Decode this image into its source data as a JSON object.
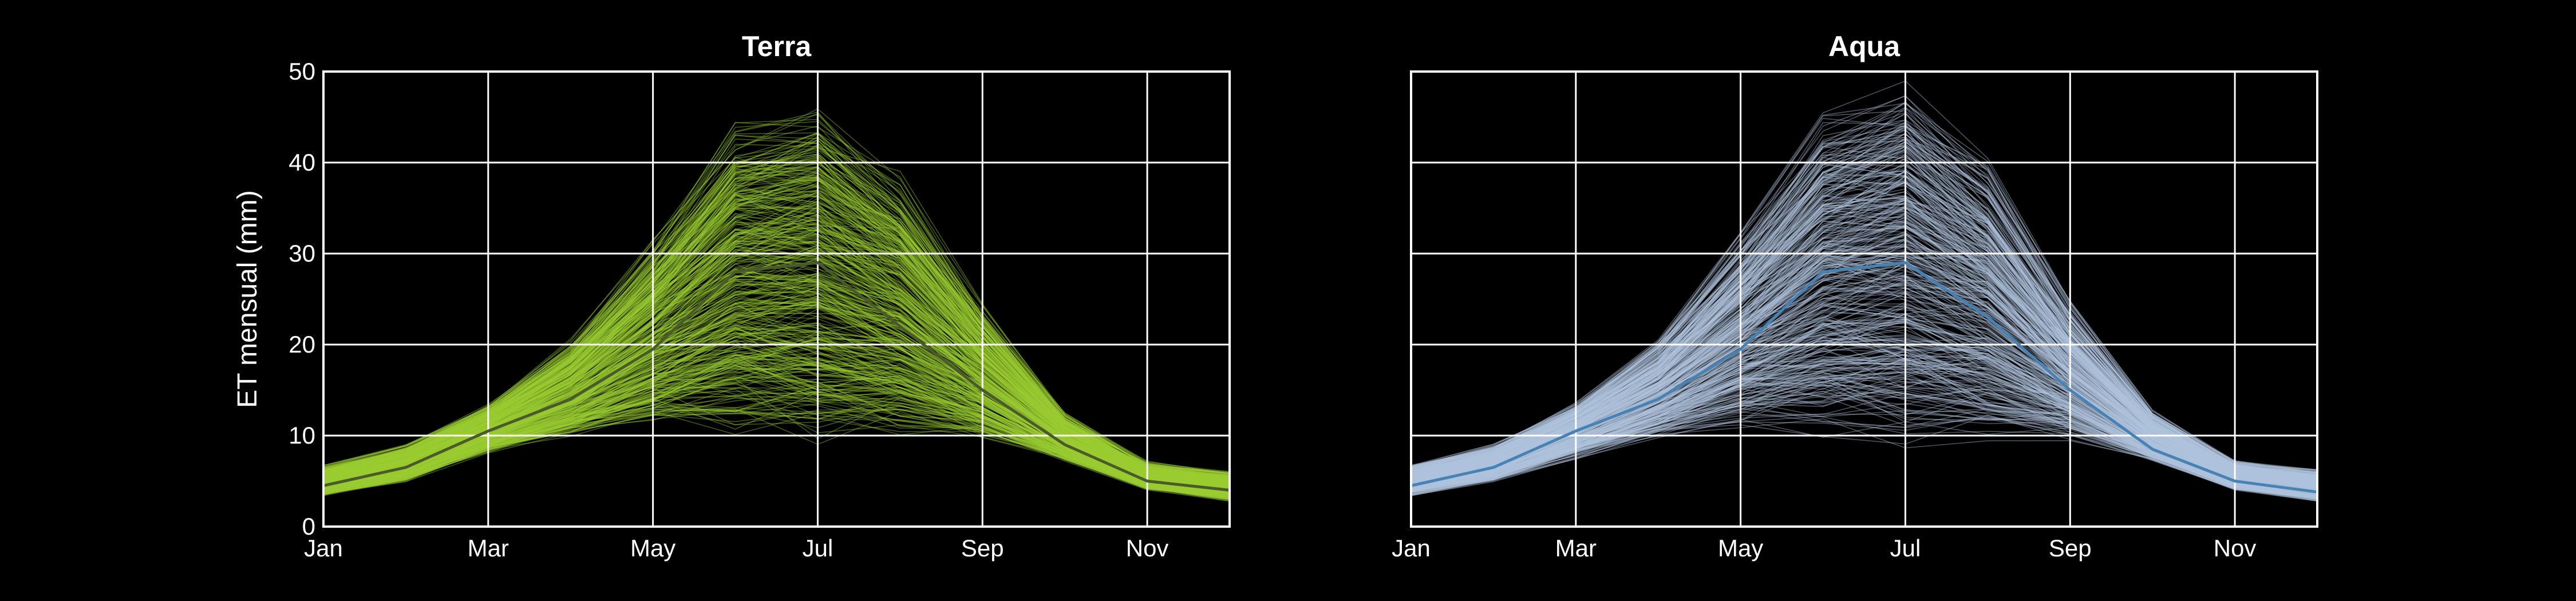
{
  "chart_data": [
    {
      "type": "line",
      "title": "Terra",
      "xlabel": "",
      "ylabel": "ET mensual (mm)",
      "x": [
        "Jan",
        "Feb",
        "Mar",
        "Apr",
        "May",
        "Jun",
        "Jul",
        "Aug",
        "Sep",
        "Oct",
        "Nov",
        "Dec"
      ],
      "xticks": [
        "Jan",
        "Mar",
        "May",
        "Jul",
        "Sep",
        "Nov"
      ],
      "ylim": [
        0,
        50
      ],
      "yticks": [
        0,
        10,
        20,
        30,
        40,
        50
      ],
      "grid": true,
      "colors": {
        "ensemble": "#9acd32",
        "mean": "#4a5a2a",
        "background": "#000000",
        "grid": "#ffffff"
      },
      "ensemble_count": 400,
      "ensemble_band": {
        "p05": [
          3.6,
          5.2,
          8.5,
          10.5,
          12.5,
          13.0,
          12.5,
          12.0,
          10.5,
          7.5,
          4.2,
          3.0
        ],
        "p95": [
          6.4,
          8.6,
          13.0,
          19.5,
          30.0,
          42.0,
          43.5,
          36.0,
          23.0,
          12.0,
          6.8,
          5.8
        ]
      },
      "series": [
        {
          "values": [
            4.5,
            6.5,
            10.5,
            14.0,
            19.5,
            28.0,
            29.0,
            22.0,
            15.0,
            9.0,
            5.0,
            4.0
          ]
        }
      ]
    },
    {
      "type": "line",
      "title": "Aqua",
      "xlabel": "",
      "ylabel": "",
      "x": [
        "Jan",
        "Feb",
        "Mar",
        "Apr",
        "May",
        "Jun",
        "Jul",
        "Aug",
        "Sep",
        "Oct",
        "Nov",
        "Dec"
      ],
      "xticks": [
        "Jan",
        "Mar",
        "May",
        "Jul",
        "Sep",
        "Nov"
      ],
      "ylim": [
        0,
        50
      ],
      "yticks": [],
      "grid": true,
      "colors": {
        "ensemble": "#b0c4de",
        "mean": "#4682b4",
        "background": "#000000",
        "grid": "#ffffff"
      },
      "ensemble_count": 400,
      "ensemble_band": {
        "p05": [
          3.6,
          5.2,
          8.0,
          10.5,
          12.5,
          13.0,
          12.5,
          12.0,
          10.5,
          7.5,
          4.2,
          3.0
        ],
        "p95": [
          6.4,
          8.6,
          13.0,
          19.5,
          30.0,
          42.0,
          45.0,
          37.0,
          23.0,
          12.0,
          6.8,
          5.8
        ]
      },
      "series": [
        {
          "values": [
            4.5,
            6.5,
            10.5,
            14.0,
            19.5,
            28.0,
            29.0,
            23.0,
            15.0,
            8.5,
            5.0,
            3.8
          ]
        }
      ]
    }
  ]
}
